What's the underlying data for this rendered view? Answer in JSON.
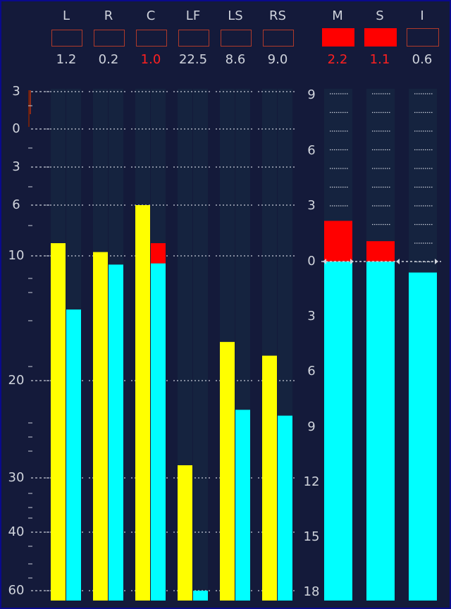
{
  "left_meter": {
    "scale": [
      "3",
      "0",
      "3",
      "6",
      "10",
      "20",
      "30",
      "40",
      "60"
    ],
    "channels": [
      {
        "name": "L",
        "readout": "1.2",
        "over": false,
        "peak": 9.0,
        "rms": 14.3,
        "rms_over": false
      },
      {
        "name": "R",
        "readout": "0.2",
        "over": false,
        "peak": 9.7,
        "rms": 10.7,
        "rms_over": false
      },
      {
        "name": "C",
        "readout": "1.0",
        "over": true,
        "peak": 6.0,
        "rms": 10.6,
        "rms_over": true
      },
      {
        "name": "LF",
        "readout": "22.5",
        "over": false,
        "peak": 28.7,
        "rms": 60.0,
        "rms_over": false
      },
      {
        "name": "LS",
        "readout": "8.6",
        "over": false,
        "peak": 16.9,
        "rms": 23.0,
        "rms_over": false
      },
      {
        "name": "RS",
        "readout": "9.0",
        "over": false,
        "peak": 18.0,
        "rms": 23.6,
        "rms_over": false
      }
    ]
  },
  "right_meter": {
    "scale": [
      "9",
      "6",
      "3",
      "0",
      "3",
      "6",
      "9",
      "12",
      "15",
      "18"
    ],
    "channels": [
      {
        "name": "M",
        "readout": "2.2",
        "over": true,
        "level": 2.2
      },
      {
        "name": "S",
        "readout": "1.1",
        "over": true,
        "level": 1.1
      },
      {
        "name": "I",
        "readout": "0.6",
        "over": false,
        "level": -0.6
      }
    ]
  },
  "colors": {
    "background": "#141a3a",
    "frame": "#0a0a8c",
    "track": "#15233f",
    "peak_bar": "#ffff00",
    "rms_bar": "#00ffff",
    "over": "#ff0000",
    "text": "#cfd3dc"
  }
}
